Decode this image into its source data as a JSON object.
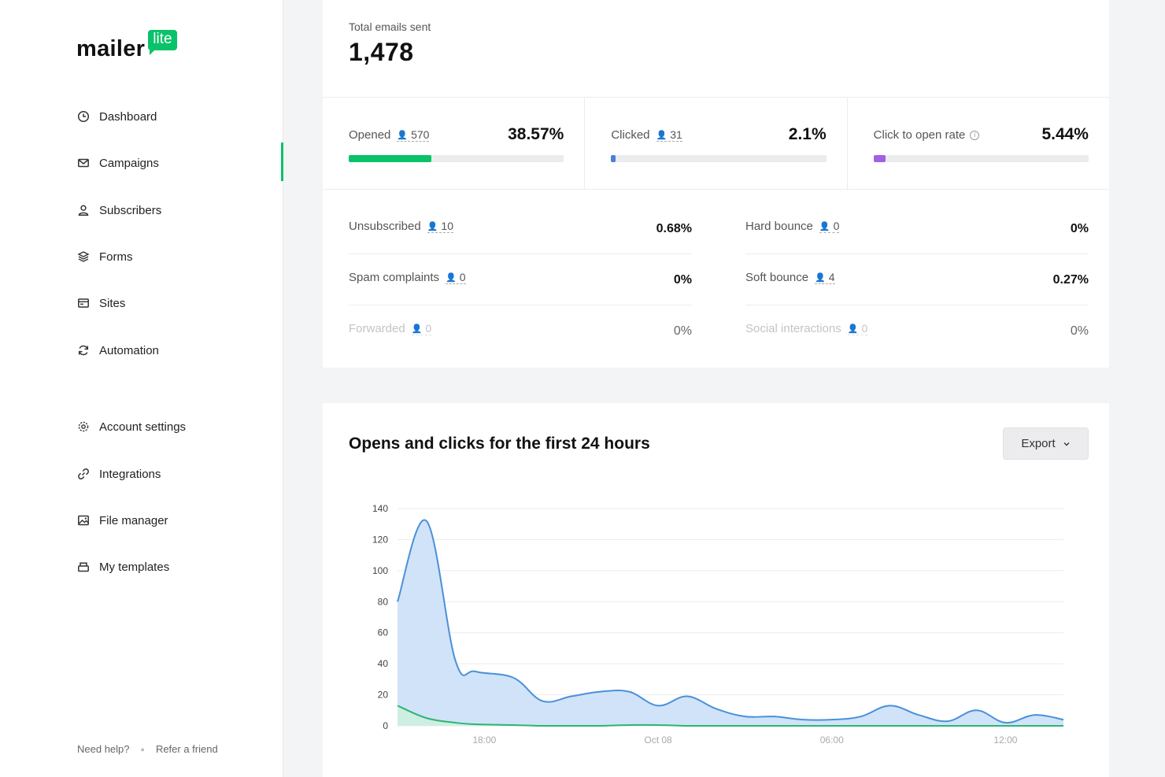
{
  "brand": {
    "name": "mailer",
    "badge": "lite",
    "accent": "#09c269"
  },
  "nav": {
    "main": [
      {
        "label": "Dashboard",
        "icon": "clock-icon"
      },
      {
        "label": "Campaigns",
        "icon": "mail-icon",
        "active": true
      },
      {
        "label": "Subscribers",
        "icon": "user-icon"
      },
      {
        "label": "Forms",
        "icon": "layers-icon"
      },
      {
        "label": "Sites",
        "icon": "browser-icon"
      },
      {
        "label": "Automation",
        "icon": "refresh-icon"
      }
    ],
    "secondary": [
      {
        "label": "Account settings",
        "icon": "gear-icon"
      },
      {
        "label": "Integrations",
        "icon": "link-icon"
      },
      {
        "label": "File manager",
        "icon": "image-icon"
      },
      {
        "label": "My templates",
        "icon": "template-icon"
      }
    ]
  },
  "footer": {
    "help": "Need help?",
    "refer": "Refer a friend"
  },
  "summary": {
    "total_label": "Total emails sent",
    "total_value": "1,478",
    "metrics": [
      {
        "label": "Opened",
        "count": "570",
        "pct": "38.57%",
        "fill": 0.3857,
        "color": "#09c269"
      },
      {
        "label": "Clicked",
        "count": "31",
        "pct": "2.1%",
        "fill": 0.021,
        "color": "#4a7fd6"
      },
      {
        "label": "Click to open rate",
        "info": true,
        "pct": "5.44%",
        "fill": 0.0544,
        "color": "#a35fe6"
      }
    ],
    "stats": [
      {
        "label": "Unsubscribed",
        "count": "10",
        "value": "0.68%"
      },
      {
        "label": "Hard bounce",
        "count": "0",
        "value": "0%"
      },
      {
        "label": "Spam complaints",
        "count": "0",
        "value": "0%"
      },
      {
        "label": "Soft bounce",
        "count": "4",
        "value": "0.27%"
      },
      {
        "label": "Forwarded",
        "count": "0",
        "value": "0%",
        "faded": true
      },
      {
        "label": "Social interactions",
        "count": "0",
        "value": "0%",
        "faded": true
      }
    ]
  },
  "chart_section": {
    "title": "Opens and clicks for the first 24 hours",
    "export_label": "Export"
  },
  "chart_data": {
    "type": "area",
    "ylim": [
      0,
      140
    ],
    "yticks": [
      0,
      20,
      40,
      60,
      80,
      100,
      120,
      140
    ],
    "xticks": [
      {
        "label": "18:00",
        "hour": 3
      },
      {
        "label": "Oct 08",
        "hour": 9
      },
      {
        "label": "06:00",
        "hour": 15
      },
      {
        "label": "12:00",
        "hour": 21
      }
    ],
    "x_hours": [
      0,
      1,
      2,
      2.7,
      4,
      5,
      6,
      7,
      8,
      9,
      10,
      11,
      12,
      13,
      14,
      15,
      16,
      17,
      18,
      19,
      20,
      21,
      22,
      23
    ],
    "series": [
      {
        "values": [
          80,
          132,
          42,
          35,
          31,
          16,
          19,
          22,
          22,
          13,
          19,
          11,
          6,
          6,
          4,
          4,
          6,
          13,
          7,
          3,
          10,
          2,
          7,
          4
        ],
        "color": "#4a90d9",
        "fill": "#cfe2f8"
      },
      {
        "values": [
          13,
          5,
          2,
          1,
          0.5,
          0,
          0,
          0,
          0.5,
          0.5,
          0,
          0,
          0,
          0,
          0,
          0,
          0,
          0,
          0,
          0,
          0,
          0,
          0,
          0
        ],
        "color": "#2bb673",
        "fill": "#cfeee0"
      }
    ]
  }
}
